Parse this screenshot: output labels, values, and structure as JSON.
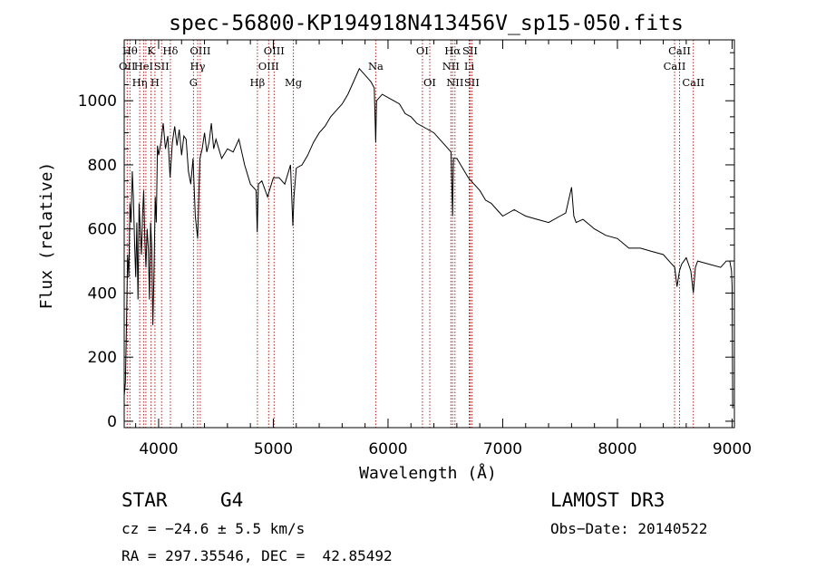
{
  "chart_data": {
    "type": "line",
    "title": "spec-56800-KP194918N413456V_sp15-050.fits",
    "xlabel": "Wavelength (Å)",
    "ylabel": "Flux (relative)",
    "xlim": [
      3700,
      9020
    ],
    "ylim": [
      -20,
      1190
    ],
    "xticks": [
      4000,
      5000,
      6000,
      7000,
      8000,
      9000
    ],
    "yticks": [
      0,
      200,
      400,
      600,
      800,
      1000
    ],
    "series": [
      {
        "name": "flux",
        "x": [
          3700,
          3710,
          3720,
          3730,
          3740,
          3750,
          3760,
          3770,
          3780,
          3790,
          3800,
          3810,
          3820,
          3830,
          3840,
          3850,
          3860,
          3870,
          3880,
          3890,
          3900,
          3910,
          3920,
          3930,
          3940,
          3950,
          3960,
          3970,
          3980,
          3990,
          4000,
          4020,
          4040,
          4060,
          4080,
          4100,
          4120,
          4140,
          4160,
          4180,
          4200,
          4220,
          4240,
          4260,
          4280,
          4300,
          4320,
          4340,
          4360,
          4380,
          4400,
          4420,
          4440,
          4460,
          4480,
          4500,
          4550,
          4600,
          4650,
          4700,
          4750,
          4800,
          4850,
          4860,
          4870,
          4900,
          4950,
          5000,
          5050,
          5100,
          5150,
          5170,
          5180,
          5200,
          5250,
          5300,
          5350,
          5400,
          5450,
          5500,
          5550,
          5600,
          5650,
          5700,
          5750,
          5800,
          5850,
          5880,
          5893,
          5900,
          5950,
          6000,
          6050,
          6100,
          6150,
          6200,
          6250,
          6300,
          6350,
          6400,
          6450,
          6500,
          6550,
          6563,
          6570,
          6600,
          6650,
          6700,
          6750,
          6800,
          6850,
          6900,
          6950,
          7000,
          7050,
          7100,
          7150,
          7200,
          7300,
          7400,
          7500,
          7550,
          7600,
          7620,
          7640,
          7700,
          7800,
          7900,
          8000,
          8100,
          8200,
          8300,
          8400,
          8450,
          8500,
          8520,
          8542,
          8560,
          8600,
          8640,
          8662,
          8680,
          8700,
          8800,
          8900,
          8950,
          8980,
          8995,
          9000,
          9005
        ],
        "y": [
          80,
          120,
          300,
          520,
          450,
          680,
          620,
          780,
          700,
          560,
          450,
          620,
          380,
          680,
          600,
          520,
          640,
          720,
          560,
          480,
          600,
          540,
          380,
          620,
          540,
          300,
          470,
          700,
          620,
          860,
          830,
          870,
          930,
          850,
          890,
          760,
          870,
          920,
          860,
          910,
          830,
          890,
          880,
          780,
          740,
          820,
          640,
          570,
          820,
          850,
          900,
          840,
          870,
          930,
          850,
          880,
          820,
          850,
          840,
          880,
          800,
          740,
          720,
          590,
          740,
          750,
          700,
          760,
          760,
          740,
          800,
          610,
          700,
          790,
          800,
          830,
          870,
          900,
          920,
          950,
          970,
          990,
          1020,
          1060,
          1100,
          1080,
          1060,
          1040,
          870,
          1000,
          1020,
          1010,
          1000,
          990,
          960,
          950,
          930,
          920,
          910,
          900,
          880,
          860,
          840,
          640,
          820,
          820,
          790,
          760,
          740,
          720,
          690,
          680,
          660,
          640,
          650,
          660,
          650,
          640,
          630,
          620,
          640,
          650,
          730,
          640,
          620,
          630,
          600,
          580,
          570,
          540,
          540,
          530,
          520,
          500,
          480,
          420,
          470,
          490,
          510,
          470,
          400,
          480,
          500,
          490,
          480,
          500,
          500,
          470,
          420,
          40
        ]
      }
    ],
    "lines": [
      {
        "wl": 3726,
        "label": "OII",
        "row": 1
      },
      {
        "wl": 3750,
        "label": "Hθ",
        "row": 0
      },
      {
        "wl": 3835,
        "label": "Hη",
        "row": 2
      },
      {
        "wl": 3869,
        "label": "HeI",
        "row": 1
      },
      {
        "wl": 3889,
        "label": "",
        "row": 3
      },
      {
        "wl": 3934,
        "label": "K",
        "row": 0
      },
      {
        "wl": 3968,
        "label": "H",
        "row": 2
      },
      {
        "wl": 4026,
        "label": "SII",
        "row": 1
      },
      {
        "wl": 4102,
        "label": "Hδ",
        "row": 0
      },
      {
        "wl": 4304,
        "label": "G",
        "row": 2
      },
      {
        "wl": 4340,
        "label": "Hγ",
        "row": 1
      },
      {
        "wl": 4363,
        "label": "OIII",
        "row": 0
      },
      {
        "wl": 4861,
        "label": "Hβ",
        "row": 2
      },
      {
        "wl": 4959,
        "label": "OIII",
        "row": 1
      },
      {
        "wl": 5007,
        "label": "OIII",
        "row": 0
      },
      {
        "wl": 5175,
        "label": "Mg",
        "row": 2
      },
      {
        "wl": 5893,
        "label": "Na",
        "row": 1
      },
      {
        "wl": 6300,
        "label": "OI",
        "row": 0
      },
      {
        "wl": 6364,
        "label": "OI",
        "row": 2
      },
      {
        "wl": 6548,
        "label": "NII",
        "row": 1
      },
      {
        "wl": 6563,
        "label": "Hα",
        "row": 0
      },
      {
        "wl": 6584,
        "label": "NII",
        "row": 2
      },
      {
        "wl": 6708,
        "label": "Li",
        "row": 1
      },
      {
        "wl": 6716,
        "label": "SII",
        "row": 0
      },
      {
        "wl": 6731,
        "label": "SII",
        "row": 2
      },
      {
        "wl": 8498,
        "label": "CaII",
        "row": 1
      },
      {
        "wl": 8542,
        "label": "CaII",
        "row": 0
      },
      {
        "wl": 8662,
        "label": "CaII",
        "row": 2
      }
    ]
  },
  "footer": {
    "class_label": "STAR",
    "subclass": "G4",
    "cz": "cz = −24.6 ± 5.5 km/s",
    "coords": "RA = 297.35546, DEC =  42.85492",
    "survey": "LAMOST DR3",
    "obs_date": "Obs−Date: 20140522"
  },
  "colors": {
    "axis": "#000000",
    "spectrum": "#000000",
    "line_marker": "#b22222"
  }
}
